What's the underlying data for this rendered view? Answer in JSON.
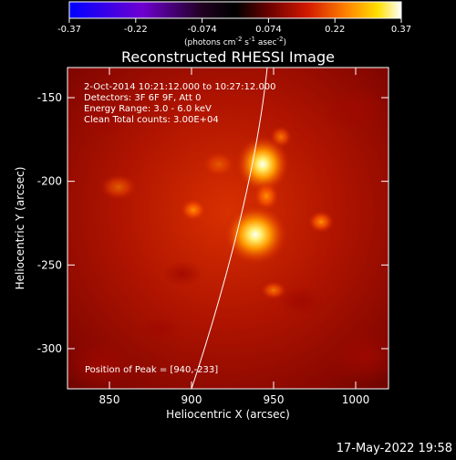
{
  "colorbar": {
    "ticks": [
      "-0.37",
      "-0.22",
      "-0.074",
      "0.074",
      "0.22",
      "0.37"
    ],
    "unit_prefix": "(photons cm",
    "unit_exp1": "-2",
    "unit_mid": " s",
    "unit_exp2": "-1",
    "unit_mid2": " asec",
    "unit_exp3": "-2",
    "unit_suffix": ")",
    "colors": [
      "#0000ff",
      "#7a00c8",
      "#2a002a",
      "#000000",
      "#5a0000",
      "#c81400",
      "#ff7a00",
      "#ffd400",
      "#ffffff"
    ]
  },
  "plot": {
    "title": "Reconstructed RHESSI Image",
    "info_lines": [
      " 2-Oct-2014 10:21:12.000 to 10:27:12.000",
      "Detectors: 3F 6F 9F, Att 0",
      "Energy Range: 3.0 - 6.0 keV",
      "Clean    Total counts: 3.00E+04"
    ],
    "peak_text": "Position of Peak = [940,-233]",
    "x_ticks": [
      "850",
      "900",
      "950",
      "1000"
    ],
    "y_ticks": [
      "-150",
      "-200",
      "-250",
      "-300"
    ],
    "xlabel": "Heliocentric X (arcsec)",
    "ylabel": "Heliocentric Y (arcsec)"
  },
  "footer": {
    "timestamp": "17-May-2022 19:58"
  }
}
